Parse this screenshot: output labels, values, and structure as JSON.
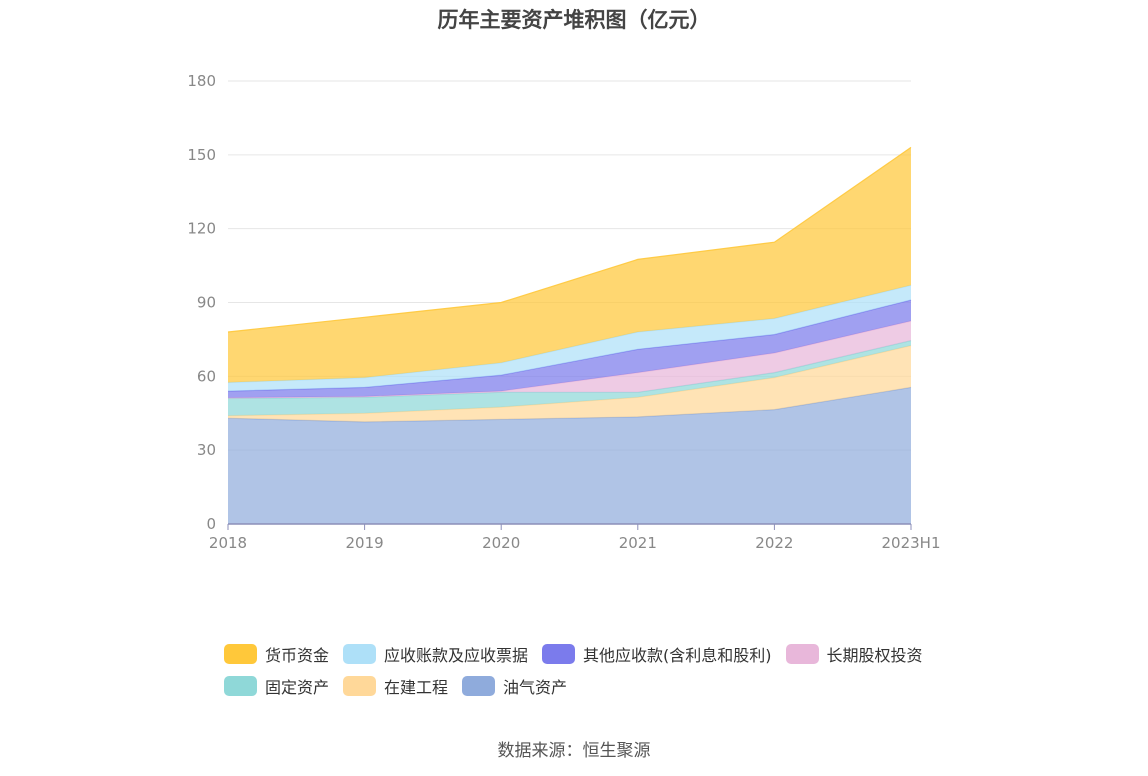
{
  "chart_data": {
    "type": "area",
    "title": "历年主要资产堆积图（亿元）",
    "categories": [
      "2018",
      "2019",
      "2020",
      "2021",
      "2022",
      "2023H1"
    ],
    "ylim": [
      0,
      180
    ],
    "yticks": [
      0,
      30,
      60,
      90,
      120,
      150,
      180
    ],
    "grid": true,
    "legend_position": "bottom",
    "stacked": true,
    "series": [
      {
        "name": "油气资产",
        "color": "#8fabdc",
        "values": [
          43,
          41.5,
          42.5,
          43.5,
          46.5,
          55.5
        ]
      },
      {
        "name": "在建工程",
        "color": "#ffd899",
        "values": [
          1,
          3.5,
          5,
          8,
          13,
          17
        ]
      },
      {
        "name": "固定资产",
        "color": "#8fd8d8",
        "values": [
          7,
          6.5,
          6,
          2,
          2,
          2
        ]
      },
      {
        "name": "长期股权投资",
        "color": "#e8b7da",
        "values": [
          0.3,
          0.3,
          0.5,
          8,
          8,
          8
        ]
      },
      {
        "name": "其他应收款(含利息和股利)",
        "color": "#7b7bec",
        "values": [
          2.7,
          3.7,
          6.5,
          9.5,
          7.5,
          8.5
        ]
      },
      {
        "name": "应收账款及应收票据",
        "color": "#aee0f8",
        "values": [
          3.5,
          4,
          5,
          7,
          6.5,
          6
        ]
      },
      {
        "name": "货币资金",
        "color": "#ffc83a",
        "values": [
          20.5,
          24.5,
          24.5,
          29.5,
          31,
          56
        ]
      }
    ]
  },
  "legend": {
    "row1": [
      "货币资金",
      "应收账款及应收票据",
      "其他应收款(含利息和股利)",
      "长期股权投资"
    ],
    "row2": [
      "固定资产",
      "在建工程",
      "油气资产"
    ]
  },
  "source": "数据来源：恒生聚源"
}
